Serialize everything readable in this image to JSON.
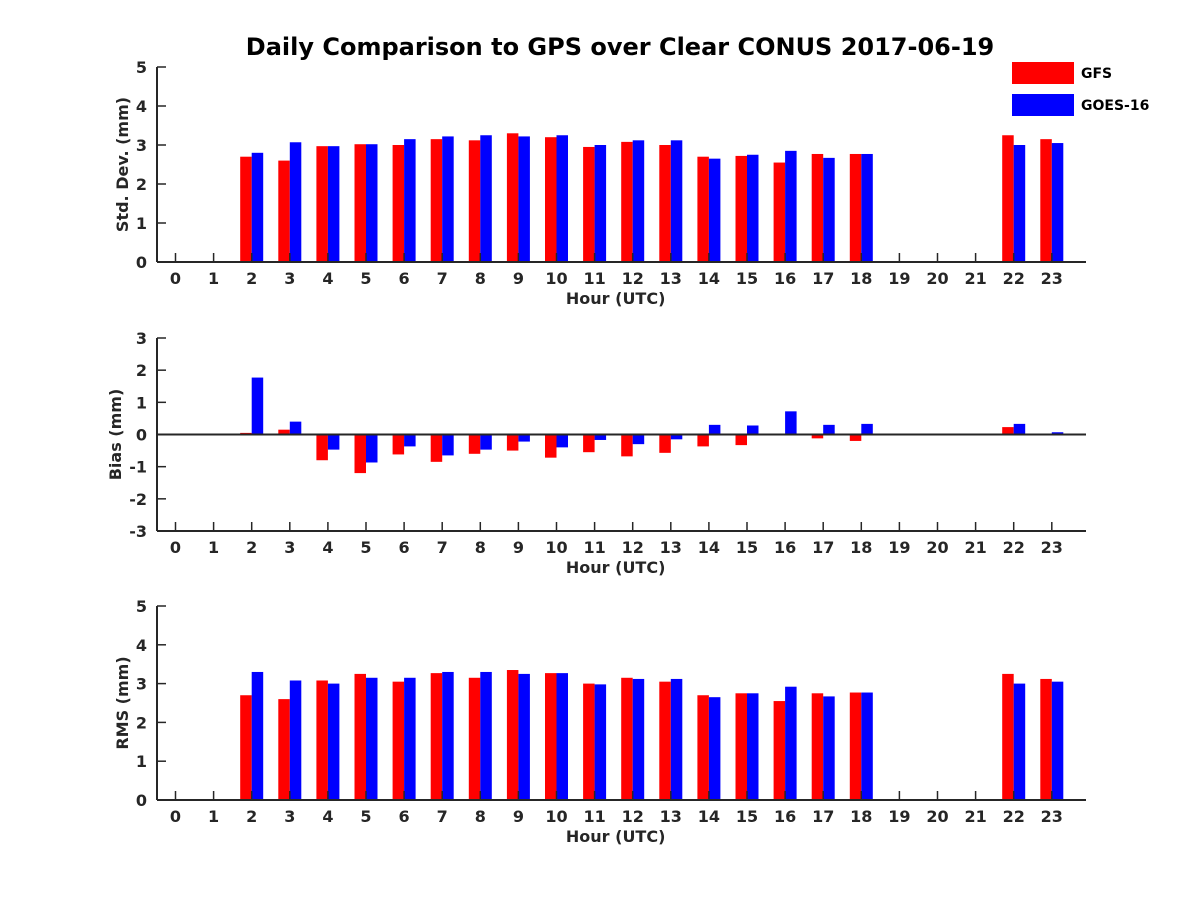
{
  "title": "Daily Comparison to GPS over Clear CONUS 2017-06-19",
  "legend": [
    {
      "name": "GFS",
      "color": "#ff0000"
    },
    {
      "name": "GOES-16",
      "color": "#0000ff"
    }
  ],
  "chart_data": [
    {
      "type": "bar",
      "ylabel": "Std. Dev. (mm)",
      "xlabel": "Hour (UTC)",
      "ylim": [
        0,
        5
      ],
      "yticks": [
        0,
        1,
        2,
        3,
        4,
        5
      ],
      "categories": [
        "0",
        "1",
        "2",
        "3",
        "4",
        "5",
        "6",
        "7",
        "8",
        "9",
        "10",
        "11",
        "12",
        "13",
        "14",
        "15",
        "16",
        "17",
        "18",
        "19",
        "20",
        "21",
        "22",
        "23"
      ],
      "series": [
        {
          "name": "GFS",
          "values": [
            null,
            null,
            2.7,
            2.6,
            2.97,
            3.02,
            3.0,
            3.15,
            3.12,
            3.3,
            3.2,
            2.95,
            3.08,
            3.0,
            2.7,
            2.72,
            2.55,
            2.77,
            2.77,
            null,
            null,
            null,
            3.25,
            3.15
          ]
        },
        {
          "name": "GOES-16",
          "values": [
            null,
            null,
            2.8,
            3.07,
            2.97,
            3.02,
            3.15,
            3.22,
            3.25,
            3.22,
            3.25,
            3.0,
            3.12,
            3.12,
            2.65,
            2.75,
            2.85,
            2.67,
            2.77,
            null,
            null,
            null,
            3.0,
            3.05
          ]
        }
      ]
    },
    {
      "type": "bar",
      "ylabel": "Bias (mm)",
      "xlabel": "Hour (UTC)",
      "ylim": [
        -3,
        3
      ],
      "yticks": [
        -3,
        -2,
        -1,
        0,
        1,
        2,
        3
      ],
      "categories": [
        "0",
        "1",
        "2",
        "3",
        "4",
        "5",
        "6",
        "7",
        "8",
        "9",
        "10",
        "11",
        "12",
        "13",
        "14",
        "15",
        "16",
        "17",
        "18",
        "19",
        "20",
        "21",
        "22",
        "23"
      ],
      "series": [
        {
          "name": "GFS",
          "values": [
            null,
            null,
            0.05,
            0.15,
            -0.8,
            -1.2,
            -0.62,
            -0.85,
            -0.6,
            -0.5,
            -0.72,
            -0.55,
            -0.68,
            -0.57,
            -0.37,
            -0.33,
            0.0,
            -0.12,
            -0.2,
            null,
            null,
            null,
            0.23,
            0.0
          ]
        },
        {
          "name": "GOES-16",
          "values": [
            null,
            null,
            1.77,
            0.4,
            -0.47,
            -0.87,
            -0.37,
            -0.65,
            -0.47,
            -0.22,
            -0.4,
            -0.17,
            -0.3,
            -0.15,
            0.3,
            0.28,
            0.72,
            0.3,
            0.33,
            null,
            null,
            null,
            0.33,
            0.07
          ]
        }
      ]
    },
    {
      "type": "bar",
      "ylabel": "RMS (mm)",
      "xlabel": "Hour (UTC)",
      "ylim": [
        0,
        5
      ],
      "yticks": [
        0,
        1,
        2,
        3,
        4,
        5
      ],
      "categories": [
        "0",
        "1",
        "2",
        "3",
        "4",
        "5",
        "6",
        "7",
        "8",
        "9",
        "10",
        "11",
        "12",
        "13",
        "14",
        "15",
        "16",
        "17",
        "18",
        "19",
        "20",
        "21",
        "22",
        "23"
      ],
      "series": [
        {
          "name": "GFS",
          "values": [
            null,
            null,
            2.7,
            2.6,
            3.08,
            3.25,
            3.05,
            3.27,
            3.15,
            3.35,
            3.27,
            3.0,
            3.15,
            3.05,
            2.7,
            2.75,
            2.55,
            2.75,
            2.77,
            null,
            null,
            null,
            3.25,
            3.12
          ]
        },
        {
          "name": "GOES-16",
          "values": [
            null,
            null,
            3.3,
            3.08,
            3.0,
            3.15,
            3.15,
            3.3,
            3.3,
            3.25,
            3.27,
            2.98,
            3.12,
            3.12,
            2.65,
            2.75,
            2.92,
            2.67,
            2.77,
            null,
            null,
            null,
            3.0,
            3.05
          ]
        }
      ]
    }
  ]
}
